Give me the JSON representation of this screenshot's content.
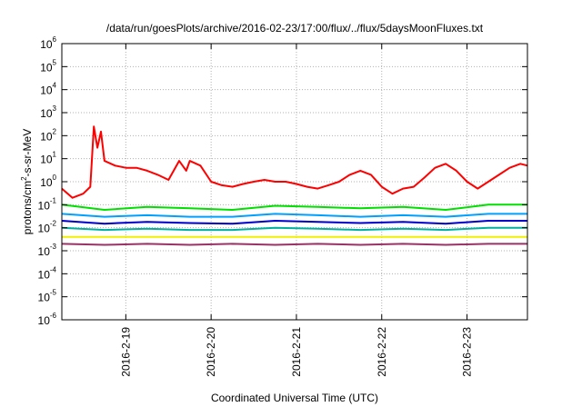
{
  "chart_data": {
    "type": "line",
    "title": "/data/run/goesPlots/archive/2016-02-23/17:00/flux/../flux/5daysMoonFluxes.txt",
    "xlabel": "Coordinated Universal Time (UTC)",
    "ylabel": {
      "prefix": "protons/cm",
      "superscript": "2",
      "suffix": "-s-sr-MeV"
    },
    "y_scale": "log",
    "y_range_exponents": [
      -6,
      6
    ],
    "y_tick_base": "10",
    "y_tick_exponents": [
      "-6",
      "-5",
      "-4",
      "-3",
      "-2",
      "-1",
      "0",
      "1",
      "2",
      "3",
      "4",
      "5",
      "6"
    ],
    "x_range": [
      "2016-02-18 06:00",
      "2016-02-23 17:00"
    ],
    "x_ticks": [
      {
        "label": "2016-2-19",
        "at": "2016-02-19"
      },
      {
        "label": "2016-2-20",
        "at": "2016-02-20"
      },
      {
        "label": "2016-2-21",
        "at": "2016-02-21"
      },
      {
        "label": "2016-2-22",
        "at": "2016-02-22"
      },
      {
        "label": "2016-2-23",
        "at": "2016-02-23"
      }
    ],
    "grid": true,
    "legend": "none",
    "series": [
      {
        "color": "#ff0000",
        "points": [
          [
            "2016-02-18 06:00",
            0.5
          ],
          [
            "2016-02-18 09:00",
            0.2
          ],
          [
            "2016-02-18 12:00",
            0.3
          ],
          [
            "2016-02-18 14:00",
            0.6
          ],
          [
            "2016-02-18 15:00",
            250
          ],
          [
            "2016-02-18 16:00",
            30
          ],
          [
            "2016-02-18 17:00",
            150
          ],
          [
            "2016-02-18 18:00",
            8
          ],
          [
            "2016-02-18 21:00",
            5
          ],
          [
            "2016-02-19 00:00",
            4
          ],
          [
            "2016-02-19 03:00",
            4
          ],
          [
            "2016-02-19 06:00",
            3
          ],
          [
            "2016-02-19 09:00",
            2
          ],
          [
            "2016-02-19 12:00",
            1.2
          ],
          [
            "2016-02-19 15:00",
            8
          ],
          [
            "2016-02-19 17:00",
            3
          ],
          [
            "2016-02-19 18:00",
            8
          ],
          [
            "2016-02-19 21:00",
            5
          ],
          [
            "2016-02-20 00:00",
            1
          ],
          [
            "2016-02-20 03:00",
            0.7
          ],
          [
            "2016-02-20 06:00",
            0.6
          ],
          [
            "2016-02-20 09:00",
            0.8
          ],
          [
            "2016-02-20 12:00",
            1
          ],
          [
            "2016-02-20 15:00",
            1.2
          ],
          [
            "2016-02-20 18:00",
            1
          ],
          [
            "2016-02-20 21:00",
            1
          ],
          [
            "2016-02-21 00:00",
            0.8
          ],
          [
            "2016-02-21 03:00",
            0.6
          ],
          [
            "2016-02-21 06:00",
            0.5
          ],
          [
            "2016-02-21 09:00",
            0.7
          ],
          [
            "2016-02-21 12:00",
            1
          ],
          [
            "2016-02-21 15:00",
            2
          ],
          [
            "2016-02-21 18:00",
            3
          ],
          [
            "2016-02-21 21:00",
            2
          ],
          [
            "2016-02-22 00:00",
            0.6
          ],
          [
            "2016-02-22 03:00",
            0.3
          ],
          [
            "2016-02-22 06:00",
            0.5
          ],
          [
            "2016-02-22 09:00",
            0.6
          ],
          [
            "2016-02-22 12:00",
            1.5
          ],
          [
            "2016-02-22 15:00",
            4
          ],
          [
            "2016-02-22 18:00",
            6
          ],
          [
            "2016-02-22 21:00",
            3
          ],
          [
            "2016-02-23 00:00",
            1
          ],
          [
            "2016-02-23 03:00",
            0.5
          ],
          [
            "2016-02-23 06:00",
            1
          ],
          [
            "2016-02-23 09:00",
            2
          ],
          [
            "2016-02-23 12:00",
            4
          ],
          [
            "2016-02-23 15:00",
            6
          ],
          [
            "2016-02-23 17:00",
            5
          ]
        ]
      },
      {
        "color": "#00e000",
        "points": [
          [
            "2016-02-18 06:00",
            0.1
          ],
          [
            "2016-02-18 18:00",
            0.06
          ],
          [
            "2016-02-19 06:00",
            0.08
          ],
          [
            "2016-02-19 18:00",
            0.07
          ],
          [
            "2016-02-20 06:00",
            0.06
          ],
          [
            "2016-02-20 18:00",
            0.09
          ],
          [
            "2016-02-21 06:00",
            0.08
          ],
          [
            "2016-02-21 18:00",
            0.07
          ],
          [
            "2016-02-22 06:00",
            0.08
          ],
          [
            "2016-02-22 18:00",
            0.06
          ],
          [
            "2016-02-23 06:00",
            0.1
          ],
          [
            "2016-02-23 17:00",
            0.1
          ]
        ]
      },
      {
        "color": "#00a0ff",
        "points": [
          [
            "2016-02-18 06:00",
            0.04
          ],
          [
            "2016-02-18 18:00",
            0.03
          ],
          [
            "2016-02-19 06:00",
            0.035
          ],
          [
            "2016-02-19 18:00",
            0.03
          ],
          [
            "2016-02-20 06:00",
            0.03
          ],
          [
            "2016-02-20 18:00",
            0.04
          ],
          [
            "2016-02-21 06:00",
            0.035
          ],
          [
            "2016-02-21 18:00",
            0.03
          ],
          [
            "2016-02-22 06:00",
            0.035
          ],
          [
            "2016-02-22 18:00",
            0.03
          ],
          [
            "2016-02-23 06:00",
            0.04
          ],
          [
            "2016-02-23 17:00",
            0.04
          ]
        ]
      },
      {
        "color": "#0000cc",
        "points": [
          [
            "2016-02-18 06:00",
            0.02
          ],
          [
            "2016-02-18 18:00",
            0.015
          ],
          [
            "2016-02-19 06:00",
            0.018
          ],
          [
            "2016-02-19 18:00",
            0.016
          ],
          [
            "2016-02-20 06:00",
            0.015
          ],
          [
            "2016-02-20 18:00",
            0.02
          ],
          [
            "2016-02-21 06:00",
            0.018
          ],
          [
            "2016-02-21 18:00",
            0.016
          ],
          [
            "2016-02-22 06:00",
            0.018
          ],
          [
            "2016-02-22 18:00",
            0.015
          ],
          [
            "2016-02-23 06:00",
            0.02
          ],
          [
            "2016-02-23 17:00",
            0.02
          ]
        ]
      },
      {
        "color": "#00b0a0",
        "points": [
          [
            "2016-02-18 06:00",
            0.01
          ],
          [
            "2016-02-18 18:00",
            0.008
          ],
          [
            "2016-02-19 06:00",
            0.009
          ],
          [
            "2016-02-19 18:00",
            0.008
          ],
          [
            "2016-02-20 06:00",
            0.008
          ],
          [
            "2016-02-20 18:00",
            0.01
          ],
          [
            "2016-02-21 06:00",
            0.009
          ],
          [
            "2016-02-21 18:00",
            0.008
          ],
          [
            "2016-02-22 06:00",
            0.009
          ],
          [
            "2016-02-22 18:00",
            0.008
          ],
          [
            "2016-02-23 06:00",
            0.01
          ],
          [
            "2016-02-23 17:00",
            0.01
          ]
        ]
      },
      {
        "color": "#f0f000",
        "points": [
          [
            "2016-02-18 06:00",
            0.004
          ],
          [
            "2016-02-19 06:00",
            0.004
          ],
          [
            "2016-02-20 06:00",
            0.004
          ],
          [
            "2016-02-21 06:00",
            0.004
          ],
          [
            "2016-02-22 06:00",
            0.004
          ],
          [
            "2016-02-23 06:00",
            0.004
          ],
          [
            "2016-02-23 17:00",
            0.004
          ]
        ]
      },
      {
        "color": "#993366",
        "points": [
          [
            "2016-02-18 06:00",
            0.002
          ],
          [
            "2016-02-18 18:00",
            0.0018
          ],
          [
            "2016-02-19 06:00",
            0.002
          ],
          [
            "2016-02-19 18:00",
            0.0018
          ],
          [
            "2016-02-20 06:00",
            0.002
          ],
          [
            "2016-02-20 18:00",
            0.0018
          ],
          [
            "2016-02-21 06:00",
            0.002
          ],
          [
            "2016-02-21 18:00",
            0.0018
          ],
          [
            "2016-02-22 06:00",
            0.002
          ],
          [
            "2016-02-22 18:00",
            0.0018
          ],
          [
            "2016-02-23 06:00",
            0.002
          ],
          [
            "2016-02-23 17:00",
            0.002
          ]
        ]
      }
    ]
  }
}
